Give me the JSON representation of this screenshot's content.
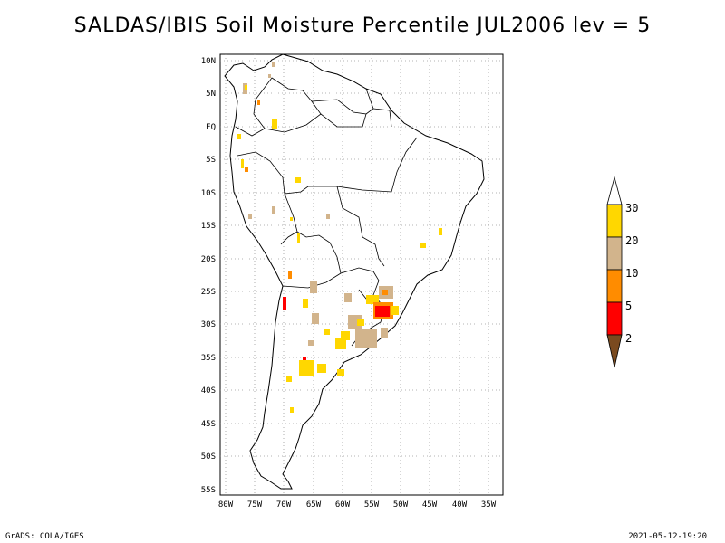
{
  "title": "SALDAS/IBIS Soil Moisture Percentile JUL2006 lev = 5",
  "footer": {
    "left": "GrADS: COLA/IGES",
    "right": "2021-05-12-19:20"
  },
  "map": {
    "lat_labels": [
      "10N",
      "5N",
      "EQ",
      "5S",
      "10S",
      "15S",
      "20S",
      "25S",
      "30S",
      "35S",
      "40S",
      "45S",
      "50S",
      "55S"
    ],
    "lon_labels": [
      "80W",
      "75W",
      "70W",
      "65W",
      "60W",
      "55W",
      "50W",
      "45W",
      "40W",
      "35W"
    ]
  },
  "legend": {
    "levels": [
      "2",
      "5",
      "10",
      "20",
      "30"
    ],
    "colors": {
      "below_2": "#7a4a1f",
      "2_5": "#ff0000",
      "5_10": "#ff8c00",
      "10_20": "#d2b48c",
      "20_30": "#ffd700",
      "above_30": "#ffffff"
    }
  }
}
